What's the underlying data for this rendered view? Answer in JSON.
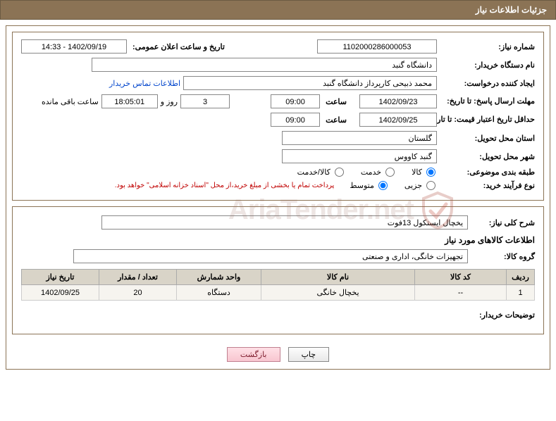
{
  "header": {
    "title": "جزئیات اطلاعات نیاز"
  },
  "form": {
    "need_no_lbl": "شماره نیاز:",
    "need_no": "1102000286000053",
    "announce_lbl": "تاریخ و ساعت اعلان عمومی:",
    "announce_val": "1402/09/19 - 14:33",
    "buyer_org_lbl": "نام دستگاه خریدار:",
    "buyer_org": "دانشگاه گنبد",
    "requester_lbl": "ایجاد کننده درخواست:",
    "requester": "محمد ذبیحی کارپرداز دانشگاه گنبد",
    "contact_link": "اطلاعات تماس خریدار",
    "reply_deadline_lbl": "مهلت ارسال پاسخ: تا تاریخ:",
    "reply_date": "1402/09/23",
    "time_lbl": "ساعت",
    "reply_time": "09:00",
    "days_val": "3",
    "days_and": "روز و",
    "remain_time": "18:05:01",
    "remain_lbl": "ساعت باقی مانده",
    "min_validity_lbl": "حداقل تاریخ اعتبار قیمت: تا تاریخ:",
    "min_validity_date": "1402/09/25",
    "min_validity_time": "09:00",
    "delivery_province_lbl": "استان محل تحویل:",
    "delivery_province": "گلستان",
    "delivery_city_lbl": "شهر محل تحویل:",
    "delivery_city": "گنبد کاووس",
    "category_lbl": "طبقه بندی موضوعی:",
    "cat_goods": "کالا",
    "cat_service": "خدمت",
    "cat_goods_service": "کالا/خدمت",
    "purchase_type_lbl": "نوع فرآیند خرید:",
    "pt_minor": "جزیی",
    "pt_medium": "متوسط",
    "purchase_note": "پرداخت تمام یا بخشی از مبلغ خرید،از محل \"اسناد خزانه اسلامی\" خواهد بود."
  },
  "desc": {
    "title_lbl": "شرح کلی نیاز:",
    "title_val": "یخچال ایستکول 13فوت",
    "goods_info_lbl": "اطلاعات کالاهای مورد نیاز",
    "group_lbl": "گروه کالا:",
    "group_val": "تجهیزات خانگی، اداری و صنعتی"
  },
  "table": {
    "headers": {
      "row": "ردیف",
      "code": "کد کالا",
      "name": "نام کالا",
      "unit": "واحد شمارش",
      "qty": "تعداد / مقدار",
      "need_date": "تاریخ نیاز"
    },
    "widths": {
      "row": "40px",
      "code": "130px",
      "name": "auto",
      "unit": "120px",
      "qty": "110px",
      "need_date": "110px"
    },
    "rows": [
      {
        "row": "1",
        "code": "--",
        "name": "یخچال خانگی",
        "unit": "دستگاه",
        "qty": "20",
        "need_date": "1402/09/25"
      }
    ]
  },
  "buyer_notes_lbl": "توضیحات خریدار:",
  "actions": {
    "print": "چاپ",
    "back": "بازگشت"
  },
  "colors": {
    "header_bg": "#8b7355",
    "border": "#8b7355",
    "link": "#0044cc",
    "note_red": "#c00000",
    "th_bg": "#d9d4c8",
    "td_bg": "#f6f4ef"
  }
}
